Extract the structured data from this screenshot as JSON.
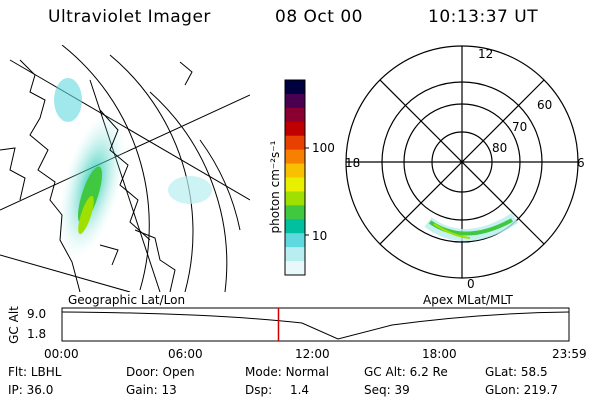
{
  "header": {
    "instrument": "Ultraviolet Imager",
    "date": "08 Oct 00",
    "time": "10:13:37 UT"
  },
  "colorbar": {
    "unit_label": "photon cm⁻²s⁻¹",
    "ticks": [
      "100",
      "10"
    ],
    "colors": [
      "#000040",
      "#4a0050",
      "#8a0030",
      "#c00000",
      "#e84000",
      "#f88000",
      "#f8c000",
      "#e8f000",
      "#a0e000",
      "#40c840",
      "#00c0a0",
      "#60d8e0",
      "#b8eef0",
      "#e8f8fb"
    ]
  },
  "left_panel": {
    "label": "Geographic Lat/Lon"
  },
  "right_panel": {
    "label": "Apex MLat/MLT",
    "mlt_labels": {
      "top": "12",
      "left": "18",
      "right": "6",
      "bottom": "0"
    },
    "lat_labels": [
      "60",
      "70",
      "80"
    ]
  },
  "timeline": {
    "axis_label": "GC Alt",
    "y_ticks": [
      "9.0",
      "1.8"
    ],
    "x_ticks": [
      "00:00",
      "06:00",
      "12:00",
      "18:00",
      "23:59"
    ],
    "current_time_fraction": 0.427
  },
  "status": {
    "row1": [
      {
        "label": "Flt:",
        "value": "LBHL"
      },
      {
        "label": "Door:",
        "value": "Open"
      },
      {
        "label": "Mode:",
        "value": "Normal"
      },
      {
        "label": "GC Alt:",
        "value": "6.2 Re"
      },
      {
        "label": "GLat:",
        "value": "58.5"
      }
    ],
    "row2": [
      {
        "label": "IP:",
        "value": "36.0"
      },
      {
        "label": "Gain:",
        "value": "13"
      },
      {
        "label": "Dsp:",
        "value": "1.4"
      },
      {
        "label": "Seq:",
        "value": "39"
      },
      {
        "label": "GLon:",
        "value": "219.7"
      }
    ]
  }
}
